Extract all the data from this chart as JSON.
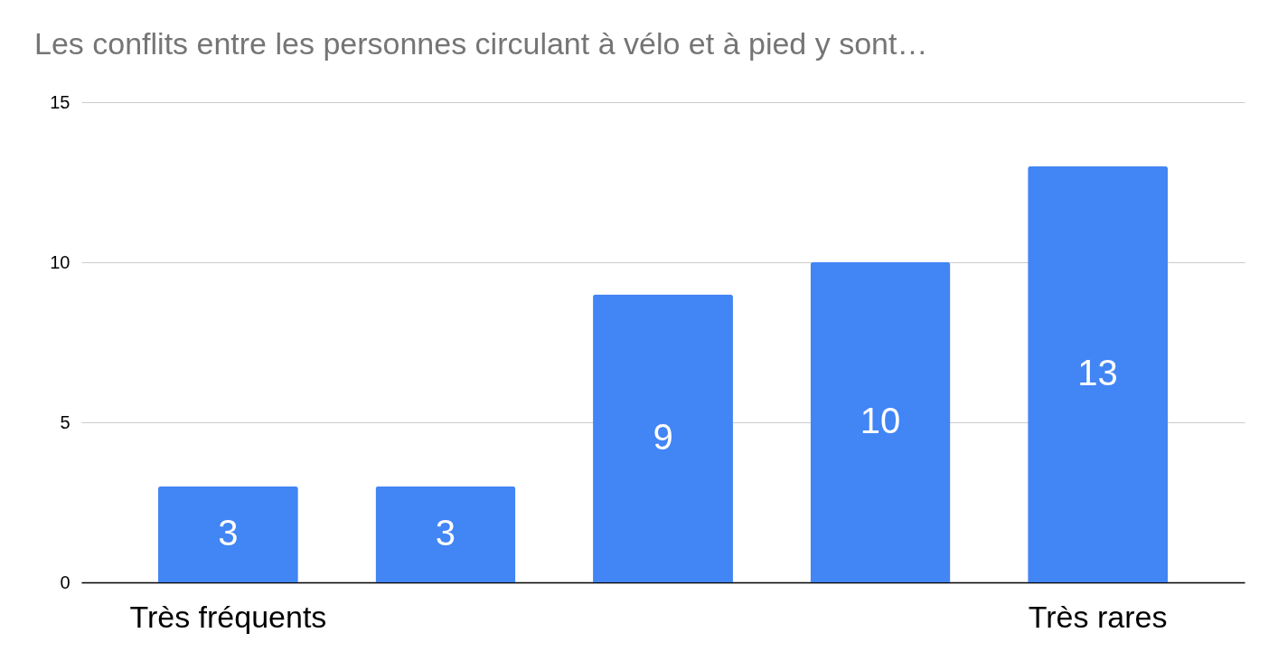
{
  "chart_data": {
    "type": "bar",
    "title": "Les conflits entre les personnes circulant à vélo et à pied y sont…",
    "categories": [
      "Très fréquents",
      null,
      null,
      null,
      "Très rares"
    ],
    "values": [
      3,
      3,
      9,
      10,
      13
    ],
    "color": "#4285f4",
    "ylim": [
      0,
      15
    ],
    "yticks": [
      0,
      5,
      10,
      15
    ],
    "grid": "y",
    "data_labels": true
  }
}
